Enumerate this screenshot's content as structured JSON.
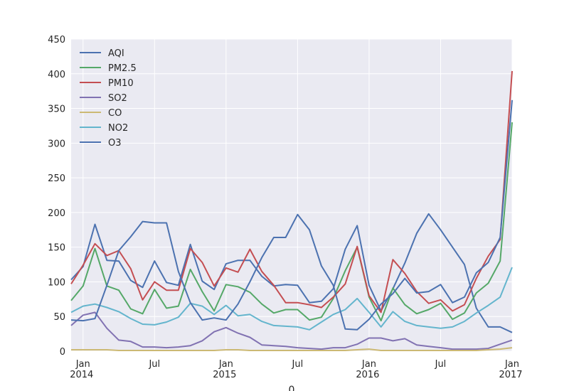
{
  "chart_data": {
    "type": "line",
    "title": "",
    "xlabel": "0",
    "ylabel": "",
    "ylim": [
      0,
      450
    ],
    "yticks": [
      0,
      50,
      100,
      150,
      200,
      250,
      300,
      350,
      400,
      450
    ],
    "xrange": [
      "2013-12",
      "2017-01"
    ],
    "xticks": [
      {
        "date": "2014-01",
        "label": "Jan",
        "sublabel": "2014"
      },
      {
        "date": "2014-07",
        "label": "Jul",
        "sublabel": ""
      },
      {
        "date": "2015-01",
        "label": "Jan",
        "sublabel": "2015"
      },
      {
        "date": "2015-07",
        "label": "Jul",
        "sublabel": ""
      },
      {
        "date": "2016-01",
        "label": "Jan",
        "sublabel": "2016"
      },
      {
        "date": "2016-07",
        "label": "Jul",
        "sublabel": ""
      },
      {
        "date": "2017-01",
        "label": "Jan",
        "sublabel": "2017"
      }
    ],
    "grid": true,
    "legend_position": "top-left",
    "x": [
      "2013-12",
      "2014-01",
      "2014-02",
      "2014-03",
      "2014-04",
      "2014-05",
      "2014-06",
      "2014-07",
      "2014-08",
      "2014-09",
      "2014-10",
      "2014-11",
      "2014-12",
      "2015-01",
      "2015-02",
      "2015-03",
      "2015-04",
      "2015-05",
      "2015-06",
      "2015-07",
      "2015-08",
      "2015-09",
      "2015-10",
      "2015-11",
      "2015-12",
      "2016-01",
      "2016-02",
      "2016-03",
      "2016-04",
      "2016-05",
      "2016-06",
      "2016-07",
      "2016-08",
      "2016-09",
      "2016-10",
      "2016-11",
      "2016-12",
      "2017-01"
    ],
    "series": [
      {
        "name": "AQI",
        "color": "#4c72b0",
        "values": [
          103,
          122,
          183,
          131,
          130,
          102,
          92,
          130,
          99,
          95,
          154,
          101,
          89,
          126,
          131,
          131,
          108,
          94,
          96,
          95,
          70,
          72,
          90,
          147,
          181,
          95,
          58,
          90,
          127,
          170,
          198,
          175,
          150,
          125,
          62,
          35,
          35,
          27
        ]
      },
      {
        "name": "PM2.5",
        "color": "#55a868",
        "values": [
          73,
          94,
          148,
          94,
          88,
          61,
          54,
          89,
          62,
          65,
          118,
          86,
          58,
          96,
          93,
          85,
          68,
          55,
          60,
          60,
          45,
          49,
          76,
          116,
          150,
          78,
          44,
          91,
          67,
          54,
          60,
          69,
          46,
          55,
          84,
          98,
          130,
          330
        ]
      },
      {
        "name": "PM10",
        "color": "#c44e52",
        "values": [
          97,
          124,
          155,
          138,
          145,
          119,
          74,
          100,
          88,
          88,
          148,
          128,
          94,
          120,
          114,
          147,
          115,
          95,
          70,
          70,
          67,
          63,
          78,
          97,
          151,
          80,
          56,
          132,
          112,
          86,
          69,
          74,
          58,
          67,
          105,
          137,
          161,
          404
        ]
      },
      {
        "name": "SO2",
        "color": "#8172b2",
        "values": [
          37,
          52,
          56,
          33,
          16,
          14,
          6,
          6,
          5,
          6,
          8,
          15,
          28,
          34,
          26,
          20,
          9,
          8,
          7,
          5,
          4,
          3,
          5,
          5,
          10,
          19,
          19,
          15,
          18,
          9,
          7,
          5,
          3,
          3,
          3,
          4,
          10,
          16
        ]
      },
      {
        "name": "CO",
        "color": "#ccb974",
        "values": [
          2,
          2,
          2,
          2,
          1,
          1,
          1,
          1,
          1,
          1,
          1,
          1,
          1,
          2,
          2,
          1,
          1,
          1,
          1,
          1,
          1,
          1,
          1,
          1,
          2,
          3,
          1,
          1,
          1,
          1,
          1,
          1,
          1,
          1,
          1,
          2,
          3,
          5
        ]
      },
      {
        "name": "NO2",
        "color": "#64b5cd",
        "values": [
          56,
          65,
          68,
          63,
          57,
          47,
          39,
          38,
          42,
          49,
          69,
          65,
          53,
          66,
          51,
          53,
          43,
          37,
          36,
          35,
          31,
          42,
          53,
          60,
          76,
          56,
          35,
          57,
          43,
          37,
          35,
          33,
          35,
          43,
          55,
          66,
          78,
          121
        ]
      },
      {
        "name": "O3",
        "color": "#4c72b0",
        "values": [
          45,
          44,
          47,
          95,
          145,
          165,
          187,
          185,
          185,
          115,
          70,
          45,
          48,
          45,
          68,
          100,
          135,
          164,
          164,
          197,
          175,
          123,
          95,
          32,
          31,
          46,
          68,
          83,
          105,
          84,
          86,
          96,
          70,
          78,
          113,
          128,
          164,
          362
        ]
      }
    ]
  }
}
